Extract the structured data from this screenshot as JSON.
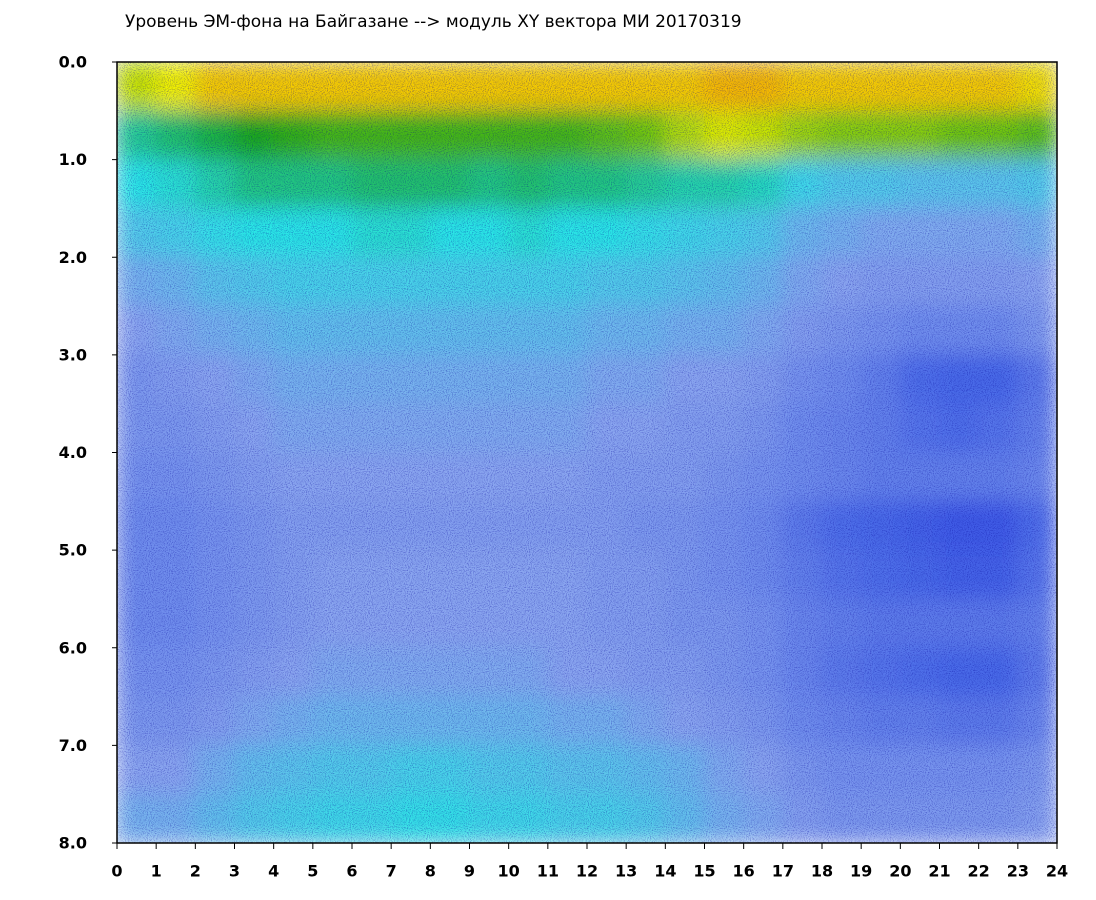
{
  "chart_data": {
    "type": "heatmap",
    "title": "Уровень ЭМ-фона на Байгазане  -->  модуль XY вектора МИ  20170319",
    "xbins": [
      0,
      1,
      2,
      3,
      4,
      5,
      6,
      7,
      8,
      9,
      10,
      11,
      12,
      13,
      14,
      15,
      16,
      17,
      18,
      19,
      20,
      21,
      22,
      23,
      24
    ],
    "ybins": [
      0,
      0.5,
      1,
      1.5,
      2,
      2.5,
      3,
      3.5,
      4,
      4.5,
      5,
      5.5,
      6,
      6.5,
      7,
      7.5,
      8
    ],
    "z": [
      [
        4.8,
        5.0,
        5.2,
        5.2,
        5.2,
        5.2,
        5.2,
        5.2,
        5.2,
        5.2,
        5.2,
        5.2,
        5.2,
        5.2,
        5.2,
        5.3,
        5.3,
        5.2,
        5.2,
        5.2,
        5.2,
        5.2,
        5.2,
        5.1
      ],
      [
        3.4,
        3.6,
        3.8,
        4.0,
        4.1,
        4.2,
        4.2,
        4.2,
        4.2,
        4.2,
        4.2,
        4.2,
        4.3,
        4.4,
        4.7,
        4.9,
        4.8,
        4.6,
        4.5,
        4.5,
        4.5,
        4.4,
        4.4,
        4.3
      ],
      [
        3.0,
        3.1,
        3.3,
        3.5,
        3.5,
        3.5,
        3.6,
        3.6,
        3.6,
        3.5,
        3.6,
        3.5,
        3.5,
        3.4,
        3.3,
        3.3,
        3.2,
        2.8,
        2.6,
        2.6,
        2.5,
        2.5,
        2.5,
        2.6
      ],
      [
        2.6,
        2.7,
        2.9,
        3.0,
        3.0,
        3.0,
        3.1,
        3.1,
        3.0,
        3.0,
        3.1,
        3.0,
        3.0,
        2.9,
        2.8,
        2.7,
        2.6,
        2.3,
        2.2,
        2.1,
        2.1,
        2.1,
        2.1,
        2.2
      ],
      [
        2.2,
        2.3,
        2.5,
        2.6,
        2.7,
        2.7,
        2.7,
        2.7,
        2.7,
        2.7,
        2.7,
        2.7,
        2.6,
        2.6,
        2.5,
        2.4,
        2.3,
        2.1,
        2.0,
        1.9,
        1.9,
        1.9,
        1.9,
        2.0
      ],
      [
        2.0,
        2.1,
        2.2,
        2.3,
        2.4,
        2.4,
        2.4,
        2.4,
        2.4,
        2.4,
        2.4,
        2.4,
        2.3,
        2.3,
        2.2,
        2.2,
        2.1,
        1.9,
        1.8,
        1.7,
        1.6,
        1.6,
        1.6,
        1.8
      ],
      [
        1.8,
        1.9,
        2.0,
        2.1,
        2.2,
        2.2,
        2.2,
        2.2,
        2.2,
        2.2,
        2.2,
        2.2,
        2.1,
        2.1,
        2.0,
        2.0,
        1.9,
        1.7,
        1.6,
        1.4,
        1.1,
        1.0,
        1.0,
        1.3
      ],
      [
        1.8,
        1.8,
        1.9,
        2.0,
        2.1,
        2.1,
        2.1,
        2.1,
        2.1,
        2.1,
        2.1,
        2.1,
        2.0,
        2.0,
        1.9,
        1.9,
        1.8,
        1.6,
        1.5,
        1.4,
        1.2,
        1.1,
        1.2,
        1.4
      ],
      [
        1.7,
        1.7,
        1.8,
        1.9,
        2.0,
        2.0,
        2.0,
        2.0,
        2.0,
        2.0,
        2.0,
        2.0,
        1.9,
        1.9,
        1.9,
        1.8,
        1.7,
        1.6,
        1.5,
        1.4,
        1.4,
        1.4,
        1.4,
        1.5
      ],
      [
        1.6,
        1.6,
        1.7,
        1.8,
        1.9,
        1.9,
        1.9,
        1.9,
        1.9,
        1.9,
        1.9,
        1.9,
        1.9,
        1.8,
        1.8,
        1.7,
        1.6,
        1.3,
        1.1,
        1.0,
        0.9,
        0.8,
        0.8,
        1.1
      ],
      [
        1.6,
        1.6,
        1.7,
        1.8,
        1.9,
        2.0,
        2.0,
        2.0,
        2.0,
        2.0,
        2.0,
        2.0,
        1.9,
        1.9,
        1.8,
        1.7,
        1.6,
        1.4,
        1.2,
        1.1,
        1.0,
        0.9,
        0.9,
        1.2
      ],
      [
        1.6,
        1.6,
        1.7,
        1.8,
        1.9,
        2.0,
        2.0,
        2.0,
        2.0,
        2.0,
        2.0,
        2.0,
        1.9,
        1.9,
        1.8,
        1.8,
        1.7,
        1.5,
        1.4,
        1.3,
        1.3,
        1.3,
        1.3,
        1.4
      ],
      [
        1.7,
        1.7,
        1.8,
        1.9,
        2.0,
        2.1,
        2.1,
        2.1,
        2.1,
        2.1,
        2.1,
        2.0,
        2.0,
        1.9,
        1.9,
        1.8,
        1.7,
        1.5,
        1.3,
        1.2,
        1.1,
        1.0,
        1.0,
        1.3
      ],
      [
        1.8,
        1.8,
        1.9,
        2.1,
        2.2,
        2.3,
        2.3,
        2.3,
        2.3,
        2.3,
        2.3,
        2.2,
        2.2,
        2.1,
        2.0,
        1.9,
        1.8,
        1.6,
        1.5,
        1.4,
        1.4,
        1.3,
        1.3,
        1.5
      ],
      [
        2.0,
        2.0,
        2.2,
        2.4,
        2.5,
        2.6,
        2.6,
        2.7,
        2.7,
        2.6,
        2.6,
        2.5,
        2.5,
        2.4,
        2.3,
        2.1,
        2.0,
        1.8,
        1.7,
        1.7,
        1.7,
        1.7,
        1.7,
        1.8
      ],
      [
        2.2,
        2.2,
        2.4,
        2.6,
        2.7,
        2.8,
        2.8,
        2.9,
        2.9,
        2.8,
        2.8,
        2.7,
        2.7,
        2.6,
        2.4,
        2.2,
        2.1,
        1.9,
        1.8,
        1.8,
        1.8,
        1.8,
        1.8,
        1.9
      ]
    ],
    "colorscale": [
      "#1a22e0",
      "#4a6ae8",
      "#8aa6f0",
      "#2ce6e6",
      "#1aaa1a",
      "#f2f200",
      "#ff3010"
    ],
    "xlim": [
      0,
      24
    ],
    "xticks": [
      0,
      1,
      2,
      3,
      4,
      5,
      6,
      7,
      8,
      9,
      10,
      11,
      12,
      13,
      14,
      15,
      16,
      17,
      18,
      19,
      20,
      21,
      22,
      23,
      24
    ],
    "ylim": [
      0,
      8
    ],
    "yticks": [
      {
        "value": 0,
        "label": "0.0"
      },
      {
        "value": 1,
        "label": "1.0"
      },
      {
        "value": 2,
        "label": "2.0"
      },
      {
        "value": 3,
        "label": "3.0"
      },
      {
        "value": 4,
        "label": "4.0"
      },
      {
        "value": 5,
        "label": "5.0"
      },
      {
        "value": 6,
        "label": "6.0"
      },
      {
        "value": 7,
        "label": "7.0"
      },
      {
        "value": 8,
        "label": "8.0"
      }
    ]
  }
}
